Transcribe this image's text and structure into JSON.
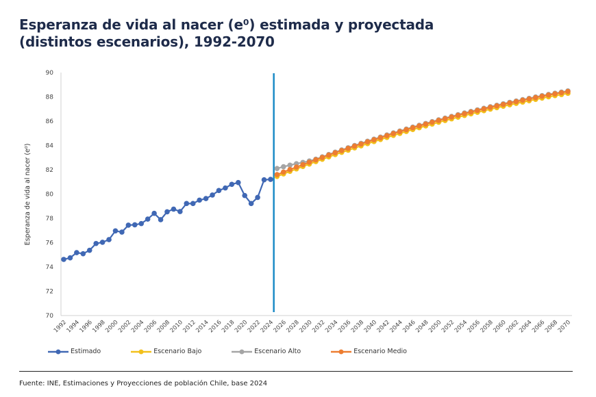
{
  "title_line1": "Esperanza de vida al nacer (e⁰) estimada y proyectada",
  "title_line2": "(distintos escenarios), 1992-2070",
  "source": "Fuente: INE, Estimaciones y Proyecciones de población Chile, base 2024",
  "chart_data": {
    "type": "line",
    "title": "Esperanza de vida al nacer (e⁰) estimada y proyectada (distintos escenarios), 1992-2070",
    "xlabel": "",
    "ylabel": "Esperanza de vida al nacer (e⁰)",
    "ylim": [
      70,
      90
    ],
    "yticks": [
      70,
      72,
      74,
      76,
      78,
      80,
      82,
      84,
      86,
      88,
      90
    ],
    "xlim": [
      1992,
      2070
    ],
    "xtick_step": 2,
    "grid": false,
    "legend_position": "bottom",
    "divider_year": 2024.5,
    "divider_color": "#1a8ac6",
    "series": [
      {
        "name": "Estimado",
        "color": "#4068b4",
        "start_year": 1992,
        "values": [
          74.62,
          74.75,
          75.18,
          75.09,
          75.37,
          75.93,
          76.03,
          76.25,
          76.97,
          76.87,
          77.44,
          77.47,
          77.57,
          77.94,
          78.41,
          77.89,
          78.54,
          78.76,
          78.56,
          79.22,
          79.22,
          79.5,
          79.63,
          79.92,
          80.29,
          80.5,
          80.8,
          80.95,
          79.88,
          79.22,
          79.72,
          81.17,
          81.21
        ]
      },
      {
        "name": "Escenario Bajo",
        "color": "#f2c01c",
        "start_year": 2025,
        "values": [
          81.45,
          81.66,
          81.87,
          82.07,
          82.27,
          82.47,
          82.67,
          82.86,
          83.06,
          83.25,
          83.43,
          83.61,
          83.8,
          83.97,
          84.15,
          84.32,
          84.49,
          84.66,
          84.83,
          84.99,
          85.15,
          85.31,
          85.46,
          85.61,
          85.76,
          85.91,
          86.05,
          86.19,
          86.33,
          86.47,
          86.6,
          86.73,
          86.86,
          86.99,
          87.11,
          87.23,
          87.35,
          87.46,
          87.57,
          87.68,
          87.79,
          87.9,
          88.0,
          88.1,
          88.19,
          88.29
        ]
      },
      {
        "name": "Escenario Alto",
        "color": "#a5a5a5",
        "start_year": 2025,
        "values": [
          82.1,
          82.25,
          82.38,
          82.5,
          82.6,
          82.72,
          82.87,
          83.06,
          83.26,
          83.45,
          83.63,
          83.81,
          84.0,
          84.17,
          84.35,
          84.52,
          84.69,
          84.86,
          85.03,
          85.19,
          85.35,
          85.51,
          85.66,
          85.81,
          85.96,
          86.11,
          86.25,
          86.39,
          86.53,
          86.67,
          86.8,
          86.93,
          87.06,
          87.19,
          87.31,
          87.43,
          87.55,
          87.66,
          87.77,
          87.88,
          87.99,
          88.1,
          88.2,
          88.3,
          88.39,
          88.49
        ]
      },
      {
        "name": "Escenario Medio",
        "color": "#ed7d31",
        "start_year": 2025,
        "values": [
          81.6,
          81.81,
          82.02,
          82.22,
          82.42,
          82.62,
          82.82,
          83.01,
          83.21,
          83.4,
          83.58,
          83.76,
          83.95,
          84.12,
          84.3,
          84.47,
          84.64,
          84.81,
          84.98,
          85.14,
          85.3,
          85.46,
          85.61,
          85.76,
          85.91,
          86.06,
          86.2,
          86.34,
          86.48,
          86.62,
          86.75,
          86.88,
          87.01,
          87.14,
          87.26,
          87.38,
          87.5,
          87.61,
          87.72,
          87.83,
          87.94,
          88.05,
          88.15,
          88.25,
          88.34,
          88.44
        ]
      }
    ]
  }
}
